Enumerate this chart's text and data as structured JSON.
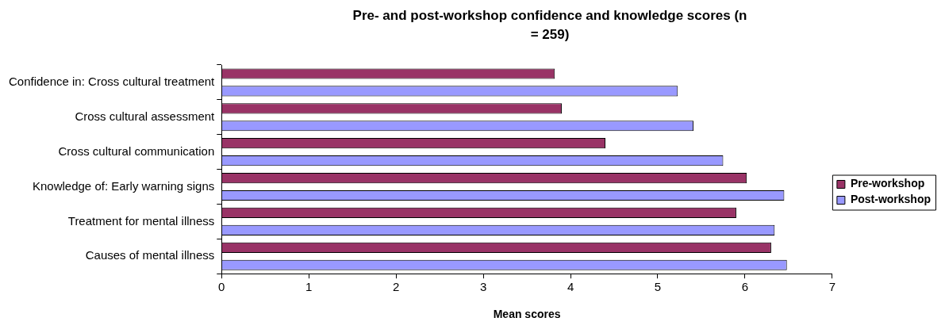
{
  "chart_data": {
    "type": "bar",
    "orientation": "horizontal",
    "title": "Pre- and post-workshop confidence and knowledge scores (n = 259)",
    "xlabel": "Mean scores",
    "categories": [
      "Confidence in: Cross cultural treatment",
      "Cross cultural assessment",
      "Cross cultural communication",
      "Knowledge of: Early warning signs",
      "Treatment for mental illness",
      "Causes of mental illness"
    ],
    "series": [
      {
        "name": "Pre-workshop",
        "color": "#993366",
        "values": [
          3.82,
          3.9,
          4.4,
          6.02,
          5.9,
          6.3
        ]
      },
      {
        "name": "Post-workshop",
        "color": "#9999ff",
        "values": [
          5.23,
          5.41,
          5.75,
          6.45,
          6.34,
          6.48
        ]
      }
    ],
    "xlim": [
      0,
      7
    ],
    "xticks": [
      0,
      1,
      2,
      3,
      4,
      5,
      6,
      7
    ],
    "grid": false,
    "legend": "right"
  }
}
